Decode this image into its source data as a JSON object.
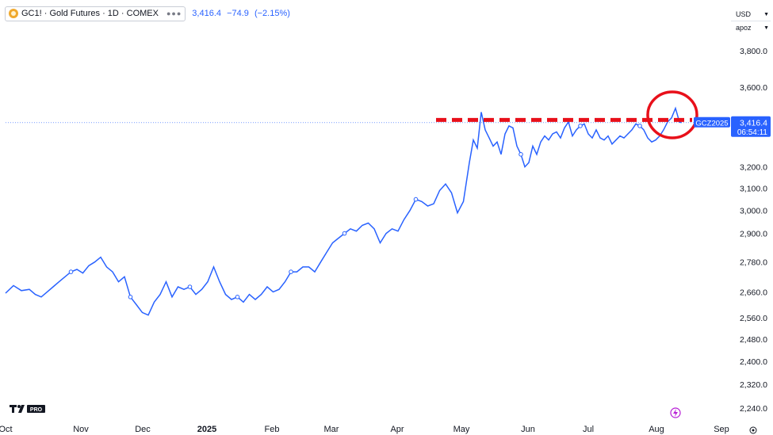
{
  "legend": {
    "title": "GC1! · Gold Futures · 1D · COMEX",
    "price": "3,416.4",
    "change": "−74.9",
    "change_pct": "(−2.15%)"
  },
  "currency": {
    "unit": "USD",
    "extra": "apoz"
  },
  "last_price": {
    "symbol": "GCZ2025",
    "price": "3,416.4",
    "countdown": "06:54:11"
  },
  "colors": {
    "line": "#2962ff",
    "annotation": "#e8101a",
    "axis_text": "#131722"
  },
  "icons": [
    "gold-coin-icon",
    "more-dots-icon",
    "chevron-down-icon",
    "lightning-icon",
    "settings-icon",
    "tradingview-logo-icon"
  ],
  "chart_data": {
    "type": "line",
    "title": "GC1! · Gold Futures · 1D · COMEX",
    "xlabel": "",
    "ylabel": "",
    "x_ticks": [
      "Oct",
      "Nov",
      "Dec",
      "2025",
      "Feb",
      "Mar",
      "Apr",
      "May",
      "Jun",
      "Jul",
      "Aug",
      "Sep"
    ],
    "y_ticks": [
      2240,
      2320,
      2400,
      2480,
      2560,
      2660,
      2780,
      2900,
      3000,
      3100,
      3200,
      3600,
      3800
    ],
    "y_tick_labels": [
      "2,240.0",
      "2,320.0",
      "2,400.0",
      "2,480.0",
      "2,560.0",
      "2,660.0",
      "2,780.0",
      "2,900.0",
      "3,000.0",
      "3,100.0",
      "3,200.0",
      "3,600.0",
      "3,800.0"
    ],
    "scale": "log",
    "grid": false,
    "series": [
      {
        "values": [
          [
            0,
            2655
          ],
          [
            4,
            2685
          ],
          [
            8,
            2665
          ],
          [
            12,
            2670
          ],
          [
            15,
            2650
          ],
          [
            18,
            2640
          ],
          [
            21,
            2660
          ],
          [
            24,
            2680
          ],
          [
            27,
            2700
          ],
          [
            30,
            2720
          ],
          [
            33,
            2740
          ],
          [
            36,
            2750
          ],
          [
            39,
            2735
          ],
          [
            42,
            2765
          ],
          [
            45,
            2780
          ],
          [
            48,
            2800
          ],
          [
            51,
            2760
          ],
          [
            54,
            2740
          ],
          [
            57,
            2700
          ],
          [
            60,
            2720
          ],
          [
            63,
            2640
          ],
          [
            66,
            2610
          ],
          [
            69,
            2580
          ],
          [
            72,
            2570
          ],
          [
            75,
            2620
          ],
          [
            78,
            2650
          ],
          [
            81,
            2700
          ],
          [
            84,
            2640
          ],
          [
            87,
            2680
          ],
          [
            90,
            2670
          ],
          [
            93,
            2680
          ],
          [
            96,
            2650
          ],
          [
            99,
            2670
          ],
          [
            102,
            2700
          ],
          [
            105,
            2760
          ],
          [
            108,
            2700
          ],
          [
            111,
            2650
          ],
          [
            114,
            2630
          ],
          [
            117,
            2640
          ],
          [
            120,
            2620
          ],
          [
            123,
            2650
          ],
          [
            126,
            2630
          ],
          [
            129,
            2650
          ],
          [
            132,
            2680
          ],
          [
            135,
            2660
          ],
          [
            138,
            2670
          ],
          [
            141,
            2700
          ],
          [
            144,
            2740
          ],
          [
            147,
            2740
          ],
          [
            150,
            2760
          ],
          [
            153,
            2760
          ],
          [
            156,
            2740
          ],
          [
            159,
            2780
          ],
          [
            162,
            2820
          ],
          [
            165,
            2860
          ],
          [
            168,
            2880
          ],
          [
            171,
            2900
          ],
          [
            174,
            2920
          ],
          [
            177,
            2910
          ],
          [
            180,
            2935
          ],
          [
            183,
            2945
          ],
          [
            186,
            2920
          ],
          [
            189,
            2860
          ],
          [
            192,
            2900
          ],
          [
            195,
            2920
          ],
          [
            198,
            2910
          ],
          [
            201,
            2960
          ],
          [
            204,
            3000
          ],
          [
            207,
            3050
          ],
          [
            210,
            3040
          ],
          [
            213,
            3020
          ],
          [
            216,
            3030
          ],
          [
            219,
            3090
          ],
          [
            222,
            3120
          ],
          [
            225,
            3080
          ],
          [
            228,
            2990
          ],
          [
            231,
            3040
          ],
          [
            234,
            3220
          ],
          [
            236,
            3330
          ],
          [
            238,
            3290
          ],
          [
            240,
            3470
          ],
          [
            242,
            3380
          ],
          [
            244,
            3340
          ],
          [
            246,
            3300
          ],
          [
            248,
            3320
          ],
          [
            250,
            3260
          ],
          [
            252,
            3360
          ],
          [
            254,
            3400
          ],
          [
            256,
            3390
          ],
          [
            258,
            3300
          ],
          [
            260,
            3260
          ],
          [
            262,
            3200
          ],
          [
            264,
            3220
          ],
          [
            266,
            3300
          ],
          [
            268,
            3260
          ],
          [
            270,
            3320
          ],
          [
            272,
            3350
          ],
          [
            274,
            3330
          ],
          [
            276,
            3360
          ],
          [
            278,
            3370
          ],
          [
            280,
            3340
          ],
          [
            282,
            3390
          ],
          [
            284,
            3420
          ],
          [
            286,
            3350
          ],
          [
            288,
            3380
          ],
          [
            290,
            3400
          ],
          [
            292,
            3410
          ],
          [
            294,
            3360
          ],
          [
            296,
            3340
          ],
          [
            298,
            3380
          ],
          [
            300,
            3340
          ],
          [
            302,
            3330
          ],
          [
            304,
            3350
          ],
          [
            306,
            3310
          ],
          [
            308,
            3330
          ],
          [
            310,
            3350
          ],
          [
            312,
            3340
          ],
          [
            314,
            3360
          ],
          [
            316,
            3380
          ],
          [
            318,
            3410
          ],
          [
            320,
            3400
          ],
          [
            322,
            3380
          ],
          [
            324,
            3340
          ],
          [
            326,
            3320
          ],
          [
            328,
            3330
          ],
          [
            330,
            3350
          ],
          [
            332,
            3380
          ],
          [
            334,
            3420
          ],
          [
            336,
            3440
          ],
          [
            338,
            3490
          ],
          [
            340,
            3420
          ],
          [
            341,
            3416.4
          ]
        ]
      }
    ],
    "dashed_resistance": 3430,
    "last_value": 3416.4
  }
}
